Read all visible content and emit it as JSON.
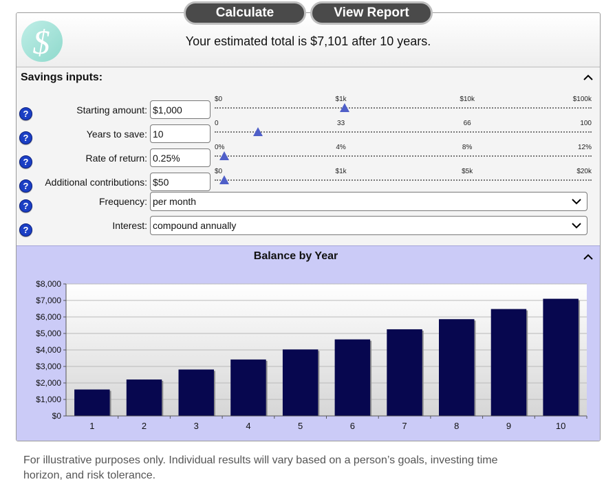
{
  "buttons": {
    "calculate": "Calculate",
    "view_report": "View Report"
  },
  "header": {
    "logo_letter": "$",
    "estimate_text": "Your estimated total is $7,101 after 10 years."
  },
  "savings_inputs": {
    "title": "Savings inputs:",
    "help_glyph": "?",
    "rows": [
      {
        "label": "Starting amount:",
        "value": "$1,000",
        "ticks": [
          "$0",
          "$1k",
          "$10k",
          "$100k"
        ],
        "position": 0.345
      },
      {
        "label": "Years to save:",
        "value": "10",
        "ticks": [
          "0",
          "33",
          "66",
          "100"
        ],
        "position": 0.115
      },
      {
        "label": "Rate of return:",
        "value": "0.25%",
        "ticks": [
          "0%",
          "4%",
          "8%",
          "12%"
        ],
        "position": 0.025
      },
      {
        "label": "Additional contributions:",
        "value": "$50",
        "ticks": [
          "$0",
          "$1k",
          "$5k",
          "$20k"
        ],
        "position": 0.025
      }
    ],
    "frequency": {
      "label": "Frequency:",
      "value": "per month"
    },
    "interest": {
      "label": "Interest:",
      "value": "compound annually"
    }
  },
  "chart_section": {
    "title": "Balance by Year"
  },
  "chart_data": {
    "type": "bar",
    "title": "Balance by Year",
    "categories": [
      "1",
      "2",
      "3",
      "4",
      "5",
      "6",
      "7",
      "8",
      "9",
      "10"
    ],
    "values": [
      1603,
      2208,
      2814,
      3421,
      4030,
      4640,
      5252,
      5865,
      6479,
      7101
    ],
    "ylim": [
      0,
      8000
    ],
    "yticks": [
      "$0",
      "$1,000",
      "$2,000",
      "$3,000",
      "$4,000",
      "$5,000",
      "$6,000",
      "$7,000",
      "$8,000"
    ],
    "grid": true,
    "bar_color": "#07074f"
  },
  "footnote": "For illustrative purposes only. Individual results will vary based on a person’s goals, investing time horizon, and risk tolerance."
}
